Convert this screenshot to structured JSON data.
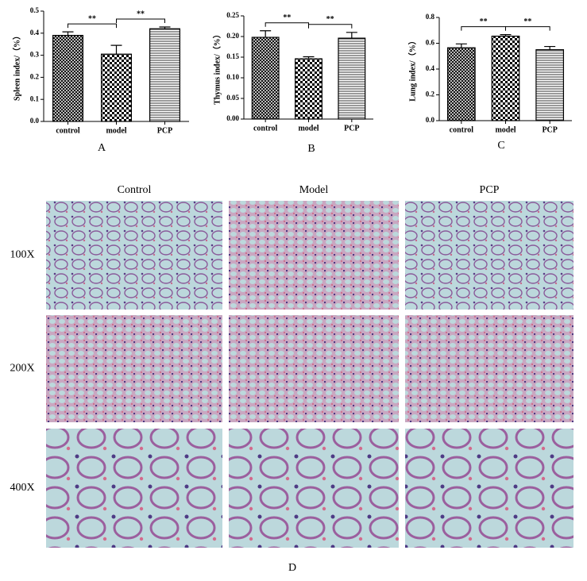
{
  "chart_data": [
    {
      "type": "bar",
      "panel_label": "A",
      "y_label": "Spleen index/（%）",
      "categories": [
        "control",
        "model",
        "PCP"
      ],
      "values": [
        0.39,
        0.305,
        0.42
      ],
      "errors": [
        0.016,
        0.04,
        0.008
      ],
      "color": "#000000",
      "patterns": [
        "crosshatch",
        "checkerboard",
        "horizontal-lines"
      ],
      "ylim": [
        0,
        0.5
      ],
      "yticks": [
        {
          "value": 0,
          "label": "0.0"
        },
        0.1,
        0.2,
        0.3,
        0.4,
        0.5
      ],
      "brackets": [
        {
          "label": "**",
          "categories": [
            0,
            1
          ]
        },
        {
          "label": "**",
          "categories": [
            1,
            2
          ]
        }
      ]
    },
    {
      "type": "bar",
      "panel_label": "B",
      "y_label": "Thymus index/（%）",
      "categories": [
        "control",
        "model",
        "PCP"
      ],
      "values": [
        0.198,
        0.146,
        0.196
      ],
      "errors": [
        0.016,
        0.005,
        0.014
      ],
      "color": "#000000",
      "patterns": [
        "crosshatch",
        "checkerboard",
        "horizontal-lines"
      ],
      "ylim": [
        0,
        0.25
      ],
      "yticks": [
        {
          "value": 0,
          "label": "0.00"
        },
        0.05,
        {
          "value": 0.1,
          "label": "0.10"
        },
        0.15,
        {
          "value": 0.2,
          "label": "0.20"
        },
        0.25
      ],
      "brackets": [
        {
          "label": "**",
          "categories": [
            0,
            1
          ]
        },
        {
          "label": "**",
          "categories": [
            1,
            2
          ]
        }
      ]
    },
    {
      "type": "bar",
      "panel_label": "C",
      "y_label": "Lung index/（%）",
      "categories": [
        "control",
        "model",
        "PCP"
      ],
      "values": [
        0.565,
        0.655,
        0.55
      ],
      "errors": [
        0.03,
        0.012,
        0.025
      ],
      "color": "#000000",
      "patterns": [
        "crosshatch",
        "checkerboard",
        "horizontal-lines"
      ],
      "ylim": [
        0,
        0.8
      ],
      "yticks": [
        {
          "value": 0,
          "label": "0.0"
        },
        0.2,
        0.4,
        0.6,
        0.8
      ],
      "brackets": [
        {
          "label": "**",
          "categories": [
            0,
            1
          ]
        },
        {
          "label": "**",
          "categories": [
            1,
            2
          ]
        }
      ]
    }
  ],
  "histology": {
    "panel_label": "D",
    "columns": [
      "Control",
      "Model",
      "PCP"
    ],
    "rows": [
      "100X",
      "200X",
      "400X"
    ]
  }
}
